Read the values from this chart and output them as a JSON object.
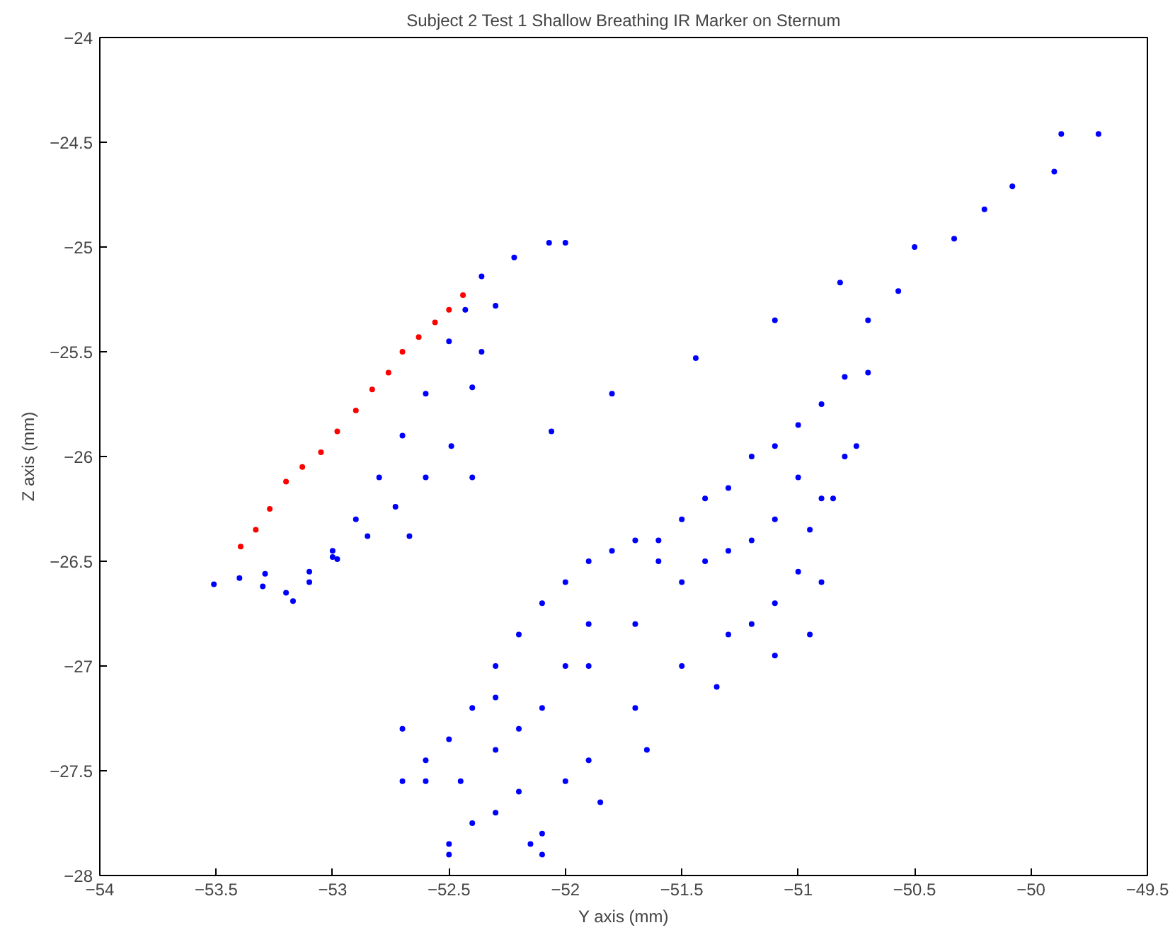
{
  "chart_data": {
    "type": "scatter",
    "title": "Subject 2 Test 1 Shallow Breathing IR Marker on Sternum",
    "xlabel": "Y axis (mm)",
    "ylabel": "Z axis (mm)",
    "xlim": [
      -54,
      -49.5
    ],
    "ylim": [
      -28,
      -24
    ],
    "xticks": [
      -54,
      -53.5,
      -53,
      -52.5,
      -52,
      -51.5,
      -51,
      -50.5,
      -50,
      -49.5
    ],
    "yticks": [
      -28,
      -27.5,
      -27,
      -26.5,
      -26,
      -25.5,
      -25,
      -24.5,
      -24
    ],
    "grid": false,
    "marker": "circle",
    "series": [
      {
        "color": "#0000ff",
        "x": [
          -53.51,
          -53.4,
          -53.3,
          -53.17,
          -53.1,
          -53.0,
          -52.9,
          -52.8,
          -52.7,
          -52.6,
          -52.5,
          -52.43,
          -52.36,
          -52.22,
          -52.07,
          -52.0,
          -52.3,
          -52.36,
          -52.4,
          -52.49,
          -52.6,
          -52.73,
          -52.85,
          -52.98,
          -53.1,
          -53.2,
          -53.29,
          -53.0,
          -52.67,
          -52.4,
          -52.06,
          -51.8,
          -51.44,
          -51.1,
          -50.82,
          -50.5,
          -50.2,
          -49.9,
          -49.71,
          -49.87,
          -50.08,
          -50.33,
          -50.57,
          -50.7,
          -52.6,
          -52.5,
          -52.4,
          -52.3,
          -52.2,
          -52.1,
          -52.0,
          -51.9,
          -51.8,
          -51.7,
          -51.6,
          -51.5,
          -51.4,
          -51.3,
          -51.2,
          -51.1,
          -51.0,
          -50.9,
          -50.8,
          -50.7,
          -52.5,
          -52.4,
          -52.2,
          -52.0,
          -51.9,
          -51.7,
          -51.5,
          -51.3,
          -51.1,
          -51.0,
          -50.95,
          -50.85,
          -50.8,
          -50.75,
          -52.3,
          -52.1,
          -51.9,
          -51.7,
          -51.5,
          -51.3,
          -51.1,
          -51.0,
          -51.9,
          -51.6,
          -51.4,
          -51.2,
          -50.9,
          -52.0,
          -52.1,
          -52.1,
          -52.15,
          -52.3,
          -52.5,
          -52.7,
          -52.7,
          -52.6,
          -52.45,
          -51.85,
          -51.65,
          -51.35,
          -51.1,
          -50.95,
          -50.9,
          -51.2,
          -52.3,
          -52.2
        ],
        "values": [
          -26.61,
          -26.58,
          -26.62,
          -26.69,
          -26.55,
          -26.45,
          -26.3,
          -26.1,
          -25.9,
          -25.7,
          -25.45,
          -25.3,
          -25.14,
          -25.05,
          -24.98,
          -24.98,
          -25.28,
          -25.5,
          -25.67,
          -25.95,
          -26.1,
          -26.24,
          -26.38,
          -26.49,
          -26.6,
          -26.65,
          -26.56,
          -26.48,
          -26.38,
          -26.1,
          -25.88,
          -25.7,
          -25.53,
          -25.35,
          -25.17,
          -25.0,
          -24.82,
          -24.64,
          -24.46,
          -24.46,
          -24.71,
          -24.96,
          -25.21,
          -25.35,
          -27.55,
          -27.35,
          -27.2,
          -27.0,
          -26.85,
          -26.7,
          -26.6,
          -26.5,
          -26.45,
          -26.4,
          -26.4,
          -26.3,
          -26.2,
          -26.15,
          -26.0,
          -25.95,
          -25.85,
          -25.75,
          -25.62,
          -25.6,
          -27.85,
          -27.75,
          -27.6,
          -27.55,
          -27.45,
          -27.2,
          -27.0,
          -26.85,
          -26.7,
          -26.55,
          -26.35,
          -26.2,
          -26.0,
          -25.95,
          -27.4,
          -27.2,
          -27.0,
          -26.8,
          -26.6,
          -26.45,
          -26.3,
          -26.1,
          -26.8,
          -26.5,
          -26.5,
          -26.4,
          -26.2,
          -27.0,
          -27.9,
          -27.8,
          -27.85,
          -27.7,
          -27.9,
          -27.55,
          -27.3,
          -27.45,
          -27.55,
          -27.65,
          -27.4,
          -27.1,
          -26.95,
          -26.85,
          -26.6,
          -26.8,
          -27.15,
          -27.3
        ]
      },
      {
        "color": "#ff0000",
        "x": [
          -53.395,
          -53.33,
          -53.27,
          -53.2,
          -53.13,
          -53.05,
          -52.98,
          -52.9,
          -52.83,
          -52.76,
          -52.7,
          -52.63,
          -52.56,
          -52.5,
          -52.44
        ],
        "values": [
          -26.43,
          -26.35,
          -26.25,
          -26.12,
          -26.05,
          -25.98,
          -25.88,
          -25.78,
          -25.68,
          -25.6,
          -25.5,
          -25.43,
          -25.36,
          -25.3,
          -25.23
        ]
      }
    ]
  }
}
